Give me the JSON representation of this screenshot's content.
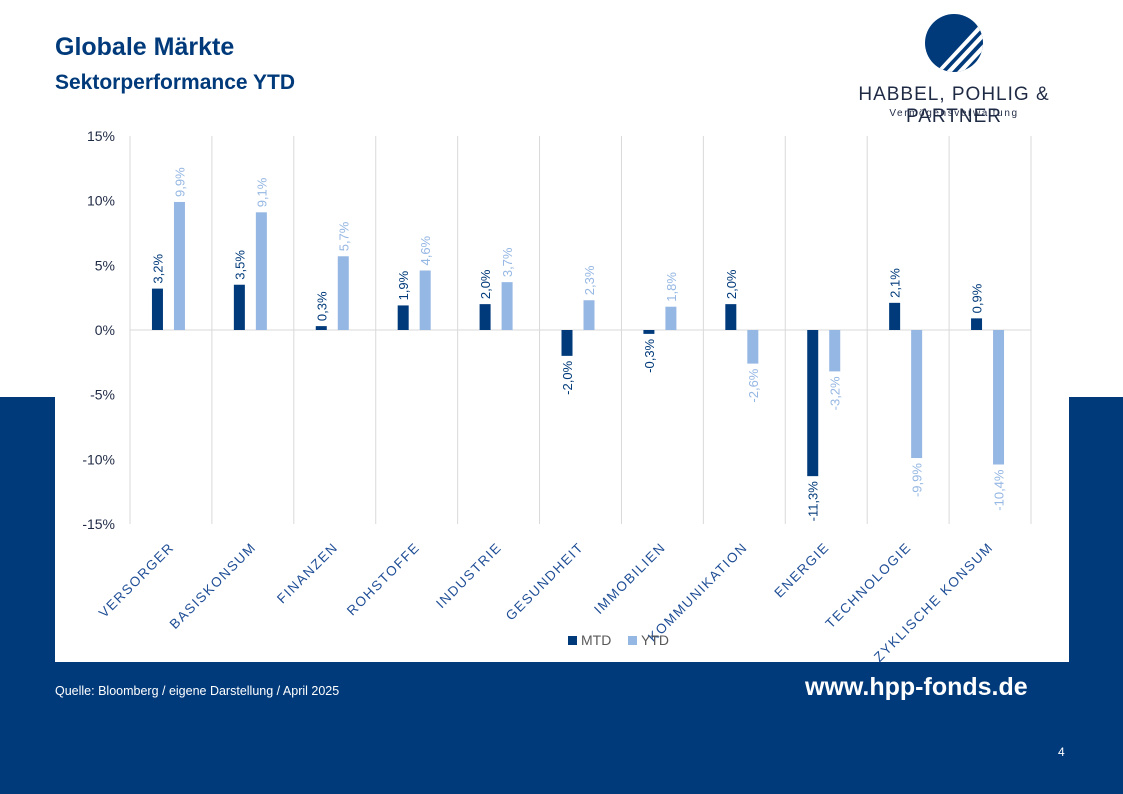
{
  "slide": {
    "title": "Globale Märkte",
    "subtitle": "Sektorperformance YTD",
    "page_number": "4"
  },
  "logo": {
    "company": "HABBEL, POHLIG & PARTNER",
    "tagline": "Vermögensverwaltung"
  },
  "footer": {
    "source": "Quelle: Bloomberg / eigene Darstellung / April 2025",
    "website": "www.hpp-fonds.de"
  },
  "colors": {
    "brand_navy": "#003A7A",
    "mtd": "#003A7A",
    "ytd": "#95B7E3"
  },
  "chart_data": {
    "type": "bar",
    "title": "",
    "xlabel": "",
    "ylabel": "",
    "ylim": [
      -15,
      15
    ],
    "yticks": [
      "15%",
      "10%",
      "5%",
      "0%",
      "-5%",
      "-10%",
      "-15%"
    ],
    "ytick_values": [
      15,
      10,
      5,
      0,
      -5,
      -10,
      -15
    ],
    "grid": "vertical category separators",
    "legend_position": "bottom",
    "categories": [
      "VERSORGER",
      "BASISKONSUM",
      "FINANZEN",
      "ROHSTOFFE",
      "INDUSTRIE",
      "GESUNDHEIT",
      "IMMOBILIEN",
      "KOMMUNIKATION",
      "ENERGIE",
      "TECHNOLOGIE",
      "ZYKLISCHE KONSUM"
    ],
    "series": [
      {
        "name": "MTD",
        "color": "#003A7A",
        "values": [
          3.2,
          3.5,
          0.3,
          1.9,
          2.0,
          -2.0,
          -0.3,
          2.0,
          -11.3,
          2.1,
          0.9
        ],
        "labels": [
          "3,2%",
          "3,5%",
          "0,3%",
          "1,9%",
          "2,0%",
          "-2,0%",
          "-0,3%",
          "2,0%",
          "-11,3%",
          "2,1%",
          "0,9%"
        ]
      },
      {
        "name": "YTD",
        "color": "#95B7E3",
        "values": [
          9.9,
          9.1,
          5.7,
          4.6,
          3.7,
          2.3,
          1.8,
          -2.6,
          -3.2,
          -9.9,
          -10.4
        ],
        "labels": [
          "9,9%",
          "9,1%",
          "5,7%",
          "4,6%",
          "3,7%",
          "2,3%",
          "1,8%",
          "-2,6%",
          "-3,2%",
          "-9,9%",
          "-10,4%"
        ]
      }
    ]
  }
}
